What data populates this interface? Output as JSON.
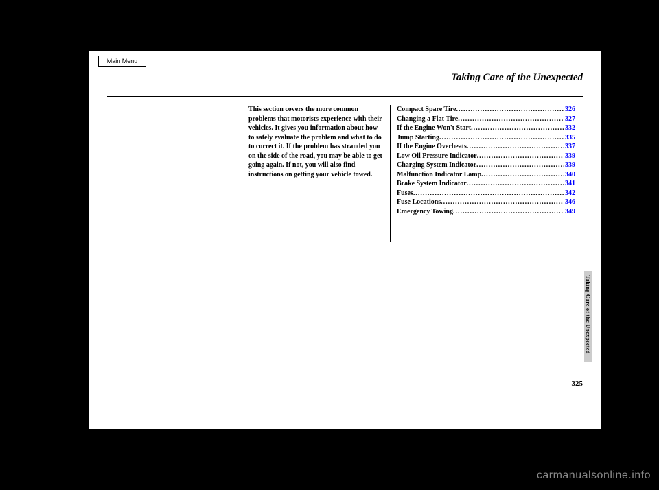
{
  "button": {
    "main_menu": "Main Menu"
  },
  "chapter": {
    "title": "Taking Care of the Unexpected",
    "intro": "This section covers the more common problems that motorists experience with their vehicles. It gives you information about how to safely evaluate the problem and what to do to correct it. If the problem has stranded you on the side of the road, you may be able to get going again. If not, you will also find instructions on getting your vehicle towed."
  },
  "toc": [
    {
      "label": "Compact Spare Tire",
      "page": "326"
    },
    {
      "label": "Changing a Flat Tire",
      "page": "327"
    },
    {
      "label": "If the Engine Won't Start",
      "page": "332"
    },
    {
      "label": "Jump Starting",
      "page": "335"
    },
    {
      "label": "If the Engine Overheats",
      "page": "337"
    },
    {
      "label": "Low Oil Pressure Indicator",
      "page": "339"
    },
    {
      "label": "Charging System Indicator",
      "page": "339"
    },
    {
      "label": "Malfunction Indicator Lamp",
      "page": "340"
    },
    {
      "label": "Brake System Indicator",
      "page": "341"
    },
    {
      "label": "Fuses",
      "page": "342"
    },
    {
      "label": "Fuse Locations",
      "page": "346"
    },
    {
      "label": "Emergency Towing",
      "page": "349"
    }
  ],
  "sidebar": {
    "label": "Taking Care of the Unexpected"
  },
  "page_number": "325",
  "watermark": "carmanualsonline.info"
}
